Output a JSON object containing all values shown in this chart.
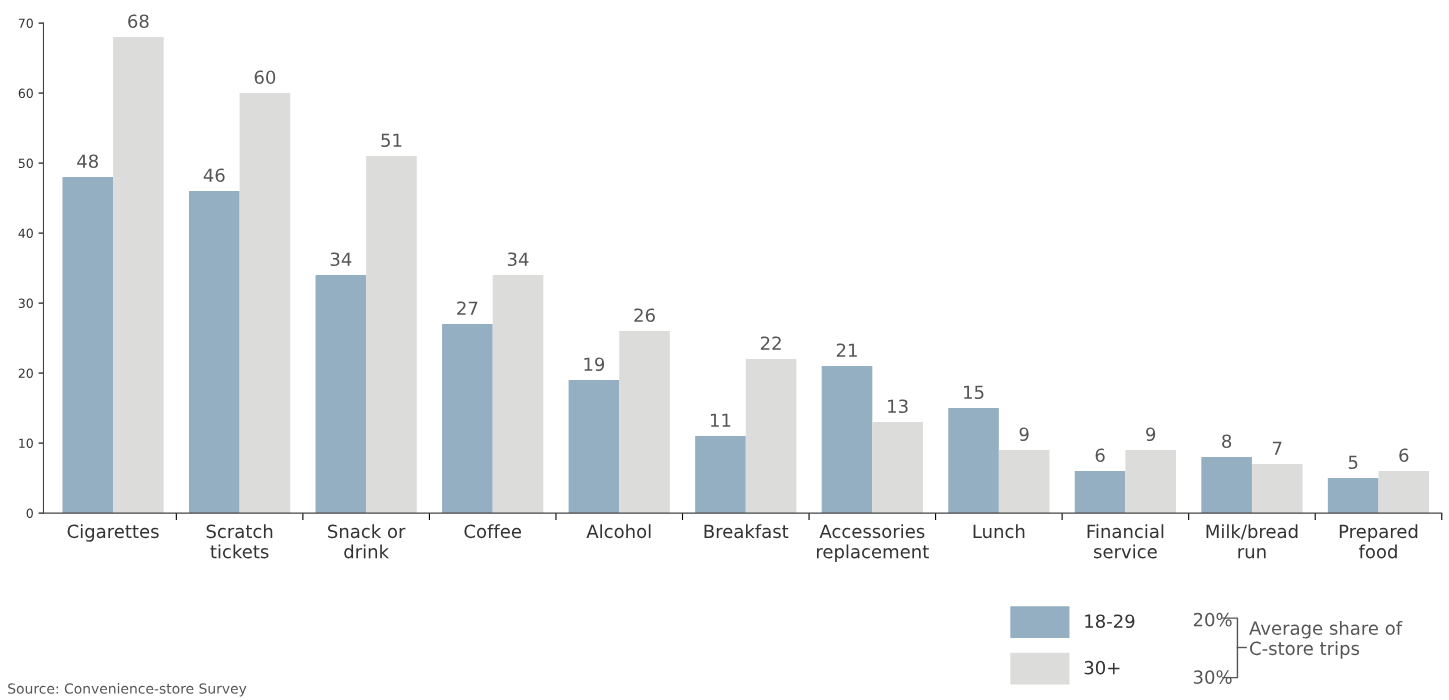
{
  "chart_data": {
    "type": "bar",
    "categories": [
      "Cigarettes",
      "Scratch tickets",
      "Snack or drink",
      "Coffee",
      "Alcohol",
      "Breakfast",
      "Accessories replacement",
      "Lunch",
      "Financial service",
      "Milk/bread run",
      "Prepared food"
    ],
    "series": [
      {
        "name": "18-29",
        "color": "#94afc1",
        "values": [
          48,
          46,
          34,
          27,
          19,
          11,
          21,
          15,
          6,
          8,
          5
        ]
      },
      {
        "name": "30+",
        "color": "#dcdcdb",
        "values": [
          68,
          60,
          51,
          34,
          26,
          22,
          13,
          9,
          9,
          7,
          6
        ]
      }
    ],
    "ylim": [
      0,
      70
    ],
    "yticks": [
      0,
      10,
      20,
      30,
      40,
      50,
      60,
      70
    ],
    "data_labels": true,
    "grid": false,
    "legend": "bottom right",
    "annotations": [
      "20%",
      "30%",
      "Average share of C-store trips",
      "Source: Convenience-store Survey"
    ]
  }
}
